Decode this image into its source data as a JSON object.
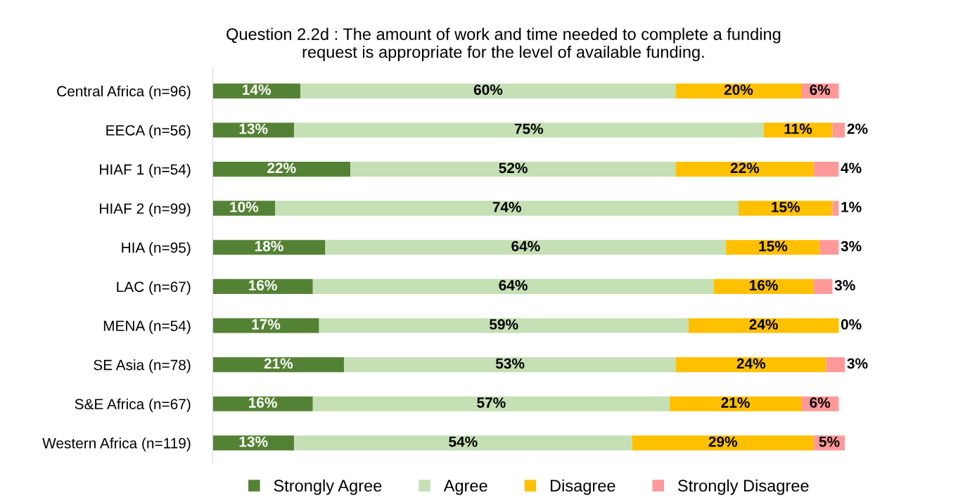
{
  "chart_data": {
    "type": "bar",
    "orientation": "horizontal",
    "stacked": true,
    "title": "Question 2.2d : The amount of work and time needed to complete a funding\nrequest is appropriate for the level of available funding.",
    "categories": [
      "Central Africa (n=96)",
      "EECA (n=56)",
      "HIAF 1 (n=54)",
      "HIAF 2 (n=99)",
      "HIA (n=95)",
      "LAC (n=67)",
      "MENA (n=54)",
      "SE Asia (n=78)",
      "S&E Africa (n=67)",
      "Western Africa (n=119)"
    ],
    "series": [
      {
        "name": "Strongly Agree",
        "color": "#548235",
        "values": [
          14,
          13,
          22,
          10,
          18,
          16,
          17,
          21,
          16,
          13
        ],
        "value_labels": [
          "14%",
          "13%",
          "22%",
          "10%",
          "18%",
          "16%",
          "17%",
          "21%",
          "16%",
          "13%"
        ]
      },
      {
        "name": "Agree",
        "color": "#c5e0b4",
        "values": [
          60,
          75,
          52,
          74,
          64,
          64,
          59,
          53,
          57,
          54
        ],
        "value_labels": [
          "60%",
          "75%",
          "52%",
          "74%",
          "64%",
          "64%",
          "59%",
          "53%",
          "57%",
          "54%"
        ]
      },
      {
        "name": "Disagree",
        "color": "#ffc000",
        "values": [
          20,
          11,
          22,
          15,
          15,
          16,
          24,
          24,
          21,
          29
        ],
        "value_labels": [
          "20%",
          "11%",
          "22%",
          "15%",
          "15%",
          "16%",
          "24%",
          "24%",
          "21%",
          "29%"
        ]
      },
      {
        "name": "Strongly Disagree",
        "color": "#ff9999",
        "values": [
          6,
          2,
          4,
          1,
          3,
          3,
          0,
          3,
          6,
          5
        ],
        "value_labels": [
          "6%",
          "2%",
          "4%",
          "1%",
          "3%",
          "3%",
          "0%",
          "3%",
          "6%",
          "5%"
        ]
      }
    ],
    "legend": "bottom",
    "grid": false,
    "tick_labels": "y"
  }
}
